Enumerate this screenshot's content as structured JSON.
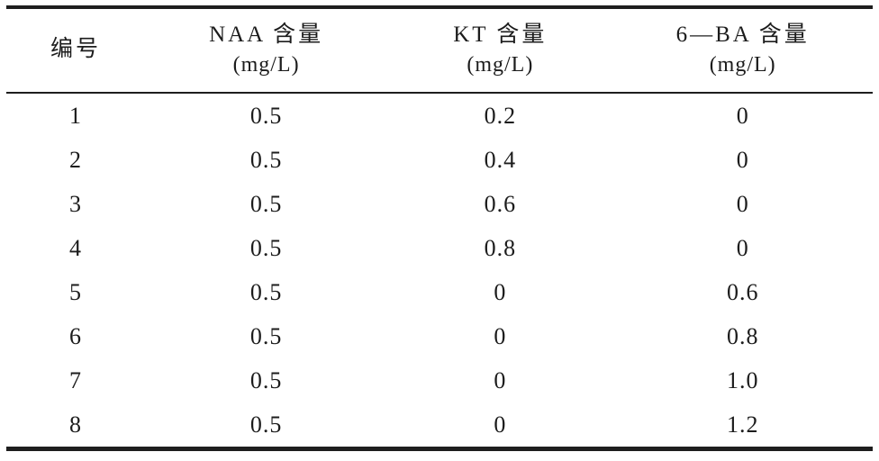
{
  "table": {
    "columns": [
      {
        "title": "编号"
      },
      {
        "title": "NAA 含量",
        "unit": "(mg/L)"
      },
      {
        "title": "KT 含量",
        "unit": "(mg/L)"
      },
      {
        "title": "6—BA 含量",
        "unit": "(mg/L)"
      }
    ],
    "rows": [
      {
        "no": "1",
        "naa": "0.5",
        "kt": "0.2",
        "ba6": "0"
      },
      {
        "no": "2",
        "naa": "0.5",
        "kt": "0.4",
        "ba6": "0"
      },
      {
        "no": "3",
        "naa": "0.5",
        "kt": "0.6",
        "ba6": "0"
      },
      {
        "no": "4",
        "naa": "0.5",
        "kt": "0.8",
        "ba6": "0"
      },
      {
        "no": "5",
        "naa": "0.5",
        "kt": "0",
        "ba6": "0.6"
      },
      {
        "no": "6",
        "naa": "0.5",
        "kt": "0",
        "ba6": "0.8"
      },
      {
        "no": "7",
        "naa": "0.5",
        "kt": "0",
        "ba6": "1.0"
      },
      {
        "no": "8",
        "naa": "0.5",
        "kt": "0",
        "ba6": "1.2"
      }
    ]
  },
  "chart_data": {
    "type": "table",
    "columns": [
      "编号",
      "NAA 含量 (mg/L)",
      "KT 含量 (mg/L)",
      "6—BA 含量 (mg/L)"
    ],
    "rows": [
      [
        1,
        0.5,
        0.2,
        0
      ],
      [
        2,
        0.5,
        0.4,
        0
      ],
      [
        3,
        0.5,
        0.6,
        0
      ],
      [
        4,
        0.5,
        0.8,
        0
      ],
      [
        5,
        0.5,
        0,
        0.6
      ],
      [
        6,
        0.5,
        0,
        0.8
      ],
      [
        7,
        0.5,
        0,
        1.0
      ],
      [
        8,
        0.5,
        0,
        1.2
      ]
    ]
  },
  "colors": {
    "text": "#1c1c1c",
    "rule": "#1e1e1e",
    "background": "#ffffff"
  }
}
